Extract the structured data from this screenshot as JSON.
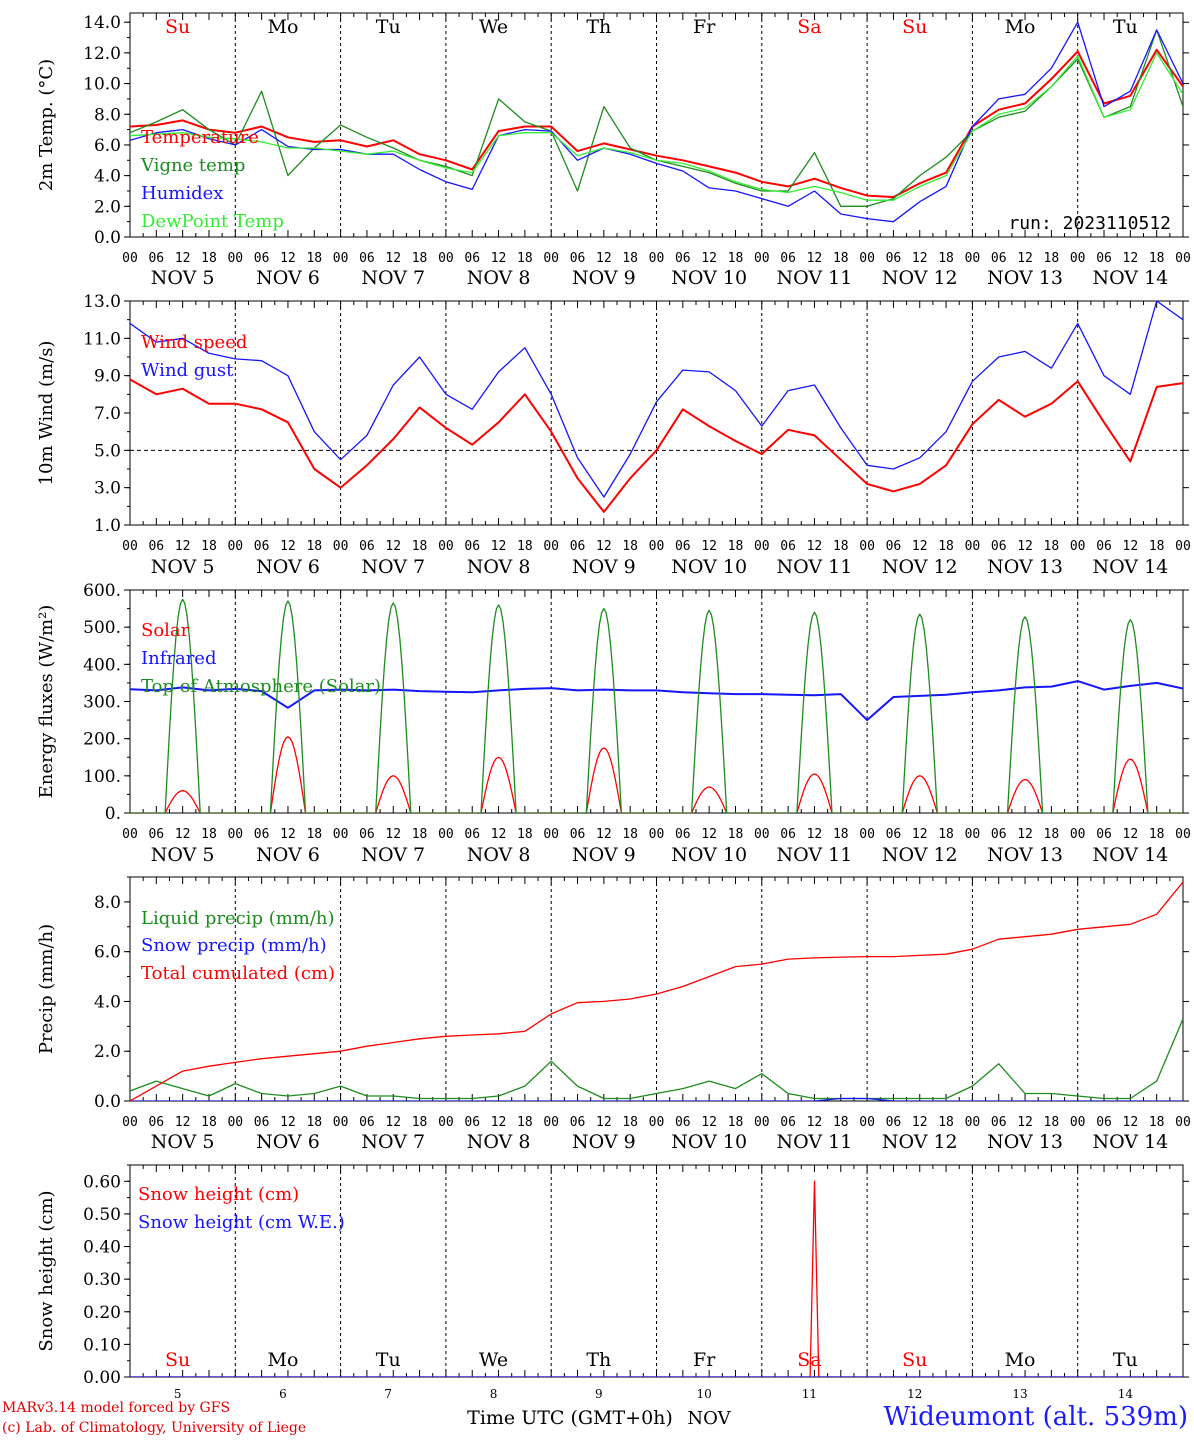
{
  "footer": {
    "credit_line1": "MARv3.14 model forced by GFS",
    "credit_line2": "(c) Lab. of Climatology, University of Liege",
    "station": "Wideumont (alt. 539m)",
    "xaxis_title": "Time UTC (GMT+0h)",
    "xaxis_unit": "NOV"
  },
  "colors": {
    "red": "#ff0000",
    "green": "#1e8c1e",
    "blue": "#1515ff",
    "light_green": "#33ee33",
    "weekend": "#ff0000",
    "weekday": "#000000"
  },
  "days": {
    "weekday_labels": [
      "Su",
      "Mo",
      "Tu",
      "We",
      "Th",
      "Fr",
      "Sa",
      "Su",
      "Mo",
      "Tu"
    ],
    "weekend_flags": [
      true,
      false,
      false,
      false,
      false,
      false,
      true,
      true,
      false,
      false
    ],
    "date_labels": [
      "NOV  5",
      "NOV  6",
      "NOV  7",
      "NOV  8",
      "NOV  9",
      "NOV 10",
      "NOV 11",
      "NOV 12",
      "NOV 13",
      "NOV 14"
    ],
    "bottom_day_numbers": [
      "5",
      "6",
      "7",
      "8",
      "9",
      "10",
      "11",
      "12",
      "13",
      "14"
    ],
    "hour_ticks": [
      "00",
      "06",
      "12",
      "18"
    ],
    "final_tick": "00"
  },
  "chart_data": [
    {
      "type": "line",
      "ylabel": "2m Temp. (°C)",
      "ylim": [
        0,
        14.6
      ],
      "yticks": [
        "0.0",
        "2.0",
        "4.0",
        "6.0",
        "8.0",
        "10.0",
        "12.0",
        "14.0"
      ],
      "annotation": "run: 2023110512",
      "x_hours": [
        0,
        6,
        12,
        18,
        24,
        30,
        36,
        42,
        48,
        54,
        60,
        66,
        72,
        78,
        84,
        90,
        96,
        102,
        108,
        114,
        120,
        126,
        132,
        138,
        144,
        150,
        156,
        162,
        168,
        174,
        180,
        186,
        192,
        198,
        204,
        210,
        216,
        222,
        228,
        234,
        240
      ],
      "series": [
        {
          "name": "Temperature",
          "color": "#ff0000",
          "values": [
            7.2,
            7.3,
            7.6,
            7.0,
            6.8,
            7.2,
            6.5,
            6.2,
            6.3,
            5.9,
            6.3,
            5.4,
            5.0,
            4.4,
            6.9,
            7.2,
            7.2,
            5.6,
            6.1,
            5.7,
            5.3,
            5.0,
            4.6,
            4.2,
            3.6,
            3.3,
            3.8,
            3.2,
            2.7,
            2.6,
            3.5,
            4.2,
            7.2,
            8.3,
            8.7,
            10.3,
            12.1,
            8.7,
            9.2,
            12.2,
            9.8
          ]
        },
        {
          "name": "Vigne temp",
          "color": "#1e8c1e",
          "values": [
            6.8,
            7.5,
            8.3,
            7.0,
            6.0,
            9.5,
            4.0,
            5.8,
            7.3,
            6.5,
            5.8,
            5.0,
            4.6,
            4.0,
            9.0,
            7.5,
            6.9,
            3.0,
            8.5,
            5.8,
            5.0,
            4.6,
            4.2,
            3.5,
            3.0,
            3.0,
            5.5,
            2.0,
            2.0,
            2.5,
            4.0,
            5.2,
            6.9,
            7.8,
            8.2,
            9.8,
            11.6,
            7.8,
            8.5,
            13.5,
            8.5
          ]
        },
        {
          "name": "Humidex",
          "color": "#1515ff",
          "values": [
            6.3,
            6.8,
            7.0,
            6.4,
            6.0,
            7.0,
            5.9,
            5.7,
            5.7,
            5.4,
            5.4,
            4.4,
            3.6,
            3.1,
            6.6,
            7.0,
            6.9,
            5.0,
            5.8,
            5.4,
            4.8,
            4.3,
            3.2,
            3.0,
            2.5,
            2.0,
            3.0,
            1.5,
            1.2,
            1.0,
            2.3,
            3.3,
            7.2,
            9.0,
            9.3,
            11.0,
            14.0,
            8.5,
            9.5,
            13.5,
            10.0
          ]
        },
        {
          "name": "DewPoint Temp",
          "color": "#33ee33",
          "values": [
            6.6,
            6.7,
            6.8,
            6.5,
            6.4,
            6.2,
            5.8,
            5.8,
            5.6,
            5.4,
            5.6,
            5.0,
            4.5,
            4.2,
            6.6,
            6.8,
            6.8,
            5.3,
            5.8,
            5.5,
            5.0,
            4.8,
            4.3,
            3.6,
            3.1,
            2.9,
            3.3,
            2.9,
            2.4,
            2.4,
            3.3,
            4.0,
            6.9,
            8.0,
            8.4,
            9.8,
            11.8,
            7.8,
            8.3,
            12.0,
            9.3
          ]
        }
      ]
    },
    {
      "type": "line",
      "ylabel": "10m Wind (m/s)",
      "ylim": [
        1.0,
        13.0
      ],
      "yticks": [
        "1.0",
        "3.0",
        "5.0",
        "7.0",
        "9.0",
        "11.0",
        "13.0"
      ],
      "reference_line": 5.0,
      "x_hours": [
        0,
        6,
        12,
        18,
        24,
        30,
        36,
        42,
        48,
        54,
        60,
        66,
        72,
        78,
        84,
        90,
        96,
        102,
        108,
        114,
        120,
        126,
        132,
        138,
        144,
        150,
        156,
        162,
        168,
        174,
        180,
        186,
        192,
        198,
        204,
        210,
        216,
        222,
        228,
        234,
        240
      ],
      "series": [
        {
          "name": "Wind speed",
          "color": "#ff0000",
          "values": [
            8.8,
            8.0,
            8.3,
            7.5,
            7.5,
            7.2,
            6.5,
            4.0,
            3.0,
            4.2,
            5.6,
            7.3,
            6.2,
            5.3,
            6.5,
            8.0,
            6.0,
            3.5,
            1.7,
            3.5,
            5.0,
            7.2,
            6.3,
            5.5,
            4.8,
            6.1,
            5.8,
            4.5,
            3.2,
            2.8,
            3.2,
            4.2,
            6.4,
            7.7,
            6.8,
            7.5,
            8.7,
            6.5,
            4.4,
            8.4,
            8.6
          ]
        },
        {
          "name": "Wind gust",
          "color": "#1515ff",
          "values": [
            11.8,
            10.8,
            11.0,
            10.2,
            9.9,
            9.8,
            9.0,
            6.0,
            4.5,
            5.8,
            8.5,
            10.0,
            8.0,
            7.2,
            9.2,
            10.5,
            8.0,
            4.6,
            2.5,
            4.8,
            7.6,
            9.3,
            9.2,
            8.2,
            6.3,
            8.2,
            8.5,
            6.2,
            4.2,
            4.0,
            4.6,
            6.0,
            8.7,
            10.0,
            10.3,
            9.4,
            11.8,
            9.0,
            8.0,
            13.0,
            12.0
          ]
        }
      ]
    },
    {
      "type": "line",
      "ylabel": "Energy fluxes (W/m²)",
      "ylim": [
        0,
        600
      ],
      "yticks": [
        "0.",
        "100.",
        "200.",
        "300.",
        "400.",
        "500.",
        "600."
      ],
      "days_sunrise_hour": 8,
      "days_sunset_hour": 16,
      "series": [
        {
          "name": "Solar",
          "color": "#ff0000",
          "daily_peaks": [
            60,
            205,
            100,
            150,
            175,
            70,
            105,
            100,
            90,
            145
          ]
        },
        {
          "name": "Infrared",
          "color": "#1515ff",
          "x_hours": [
            0,
            6,
            12,
            18,
            24,
            30,
            36,
            42,
            48,
            54,
            60,
            66,
            72,
            78,
            84,
            90,
            96,
            102,
            108,
            114,
            120,
            126,
            132,
            138,
            144,
            150,
            156,
            162,
            168,
            174,
            180,
            186,
            192,
            198,
            204,
            210,
            216,
            222,
            228,
            234,
            240
          ],
          "values": [
            333,
            330,
            338,
            330,
            334,
            328,
            283,
            330,
            332,
            330,
            332,
            328,
            326,
            325,
            330,
            334,
            336,
            330,
            332,
            330,
            330,
            325,
            322,
            320,
            320,
            318,
            317,
            320,
            250,
            312,
            315,
            318,
            325,
            330,
            338,
            340,
            355,
            332,
            342,
            350,
            335
          ]
        },
        {
          "name": "Top of Atmosphere (Solar)",
          "color": "#1e8c1e",
          "daily_peaks": [
            575,
            570,
            565,
            560,
            550,
            545,
            540,
            535,
            528,
            520
          ]
        }
      ]
    },
    {
      "type": "line",
      "ylabel": "Precip (mm/h)",
      "ylim": [
        0,
        9.0
      ],
      "yticks": [
        "0.0",
        "2.0",
        "4.0",
        "6.0",
        "8.0"
      ],
      "x_hours": [
        0,
        6,
        12,
        18,
        24,
        30,
        36,
        42,
        48,
        54,
        60,
        66,
        72,
        78,
        84,
        90,
        96,
        102,
        108,
        114,
        120,
        126,
        132,
        138,
        144,
        150,
        156,
        162,
        168,
        174,
        180,
        186,
        192,
        198,
        204,
        210,
        216,
        222,
        228,
        234,
        240
      ],
      "series": [
        {
          "name": "Liquid precip (mm/h)",
          "color": "#1e8c1e",
          "values": [
            0.4,
            0.8,
            0.5,
            0.2,
            0.7,
            0.3,
            0.2,
            0.3,
            0.6,
            0.2,
            0.2,
            0.1,
            0.1,
            0.1,
            0.2,
            0.6,
            1.6,
            0.6,
            0.1,
            0.1,
            0.3,
            0.5,
            0.8,
            0.5,
            1.1,
            0.3,
            0.1,
            0.1,
            0.1,
            0.1,
            0.1,
            0.1,
            0.6,
            1.5,
            0.3,
            0.3,
            0.2,
            0.1,
            0.1,
            0.8,
            3.3
          ]
        },
        {
          "name": "Snow precip (mm/h)",
          "color": "#1515ff",
          "values": [
            0,
            0,
            0,
            0,
            0,
            0,
            0,
            0,
            0,
            0,
            0,
            0,
            0,
            0,
            0,
            0,
            0,
            0,
            0,
            0,
            0,
            0,
            0,
            0,
            0,
            0,
            0,
            0.1,
            0.1,
            0,
            0,
            0,
            0,
            0,
            0,
            0,
            0,
            0,
            0,
            0,
            0
          ]
        },
        {
          "name": "Total cumulated (cm)",
          "color": "#ff0000",
          "values": [
            0.0,
            0.6,
            1.2,
            1.4,
            1.55,
            1.7,
            1.8,
            1.9,
            2.0,
            2.2,
            2.35,
            2.5,
            2.6,
            2.65,
            2.7,
            2.8,
            3.5,
            3.95,
            4.0,
            4.1,
            4.3,
            4.6,
            5.0,
            5.4,
            5.5,
            5.7,
            5.75,
            5.78,
            5.8,
            5.8,
            5.85,
            5.9,
            6.1,
            6.5,
            6.6,
            6.7,
            6.9,
            7.0,
            7.1,
            7.5,
            8.8
          ]
        }
      ]
    },
    {
      "type": "line",
      "ylabel": "Snow height (cm)",
      "ylim": [
        0,
        0.65
      ],
      "yticks": [
        "0.00",
        "0.10",
        "0.20",
        "0.30",
        "0.40",
        "0.50",
        "0.60"
      ],
      "series": [
        {
          "name": "Snow height (cm)",
          "color": "#ff0000",
          "x_hours": [
            0,
            154,
            155,
            156,
            157,
            240
          ],
          "values": [
            0,
            0,
            0,
            0.6,
            0,
            0
          ]
        },
        {
          "name": "Snow height (cm W.E.)",
          "color": "#1515ff",
          "x_hours": [
            0,
            240
          ],
          "values": [
            0,
            0
          ]
        }
      ]
    }
  ]
}
